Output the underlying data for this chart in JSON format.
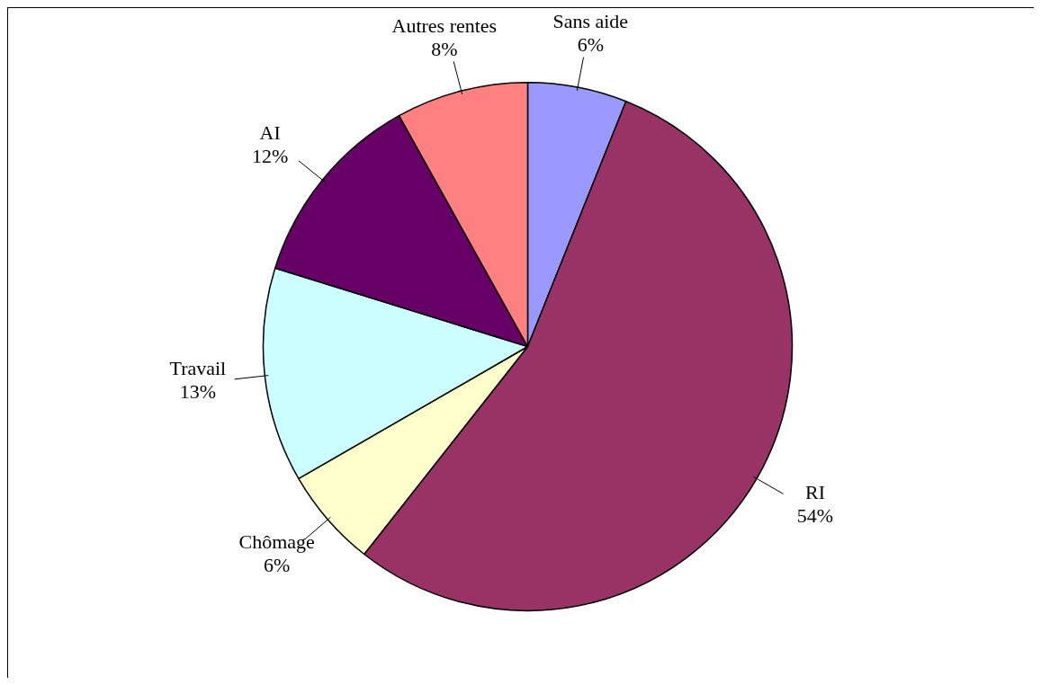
{
  "chart_data": {
    "type": "pie",
    "categories": [
      "Sans aide",
      "RI",
      "Chômage",
      "Travail",
      "AI",
      "Autres rentes"
    ],
    "values": [
      6,
      54,
      6,
      13,
      12,
      8
    ],
    "value_labels": [
      "6%",
      "54%",
      "6%",
      "13%",
      "12%",
      "8%"
    ],
    "colors": [
      "#9999ff",
      "#993366",
      "#ffffcc",
      "#ccffff",
      "#660066",
      "#ff8080"
    ],
    "legend": false
  }
}
